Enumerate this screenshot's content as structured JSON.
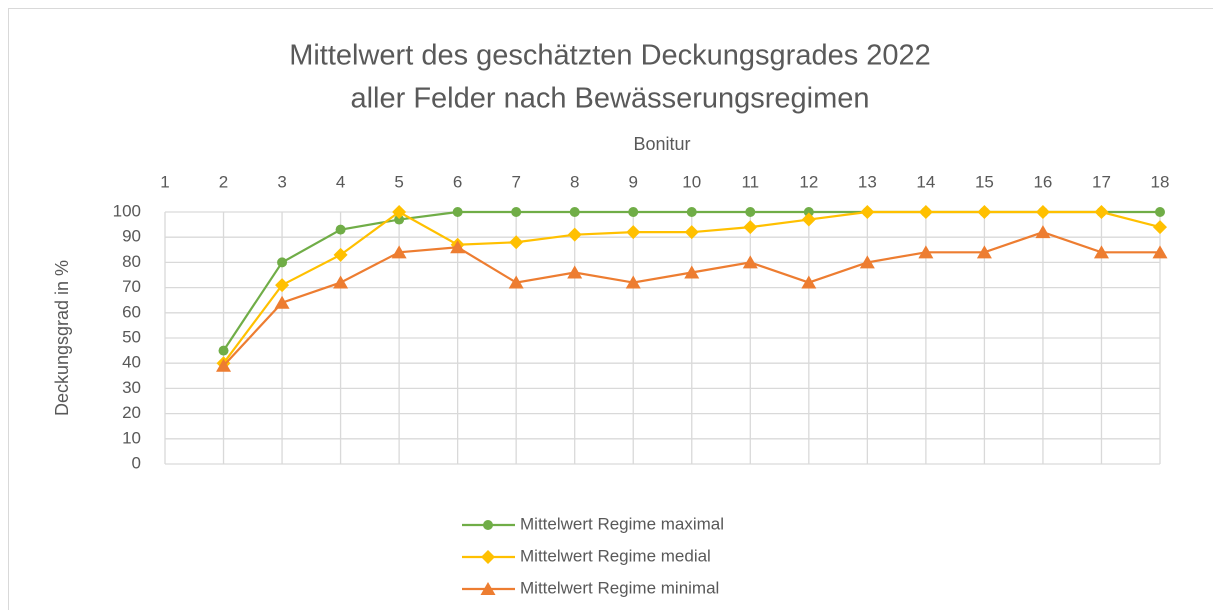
{
  "chart_data": {
    "type": "line",
    "title": [
      "Mittelwert des geschätzten Deckungsgrades 2022",
      "aller Felder nach Bewässerungsregimen"
    ],
    "x_label": "Bonitur",
    "y_label": "Deckungsgrad in %",
    "x": [
      2,
      3,
      4,
      5,
      6,
      7,
      8,
      9,
      10,
      11,
      12,
      13,
      14,
      15,
      16,
      17,
      18
    ],
    "xlim": [
      1,
      18
    ],
    "xticks": [
      1,
      2,
      3,
      4,
      5,
      6,
      7,
      8,
      9,
      10,
      11,
      12,
      13,
      14,
      15,
      16,
      17,
      18
    ],
    "ylim": [
      0,
      100
    ],
    "yticks": [
      0,
      10,
      20,
      30,
      40,
      50,
      60,
      70,
      80,
      90,
      100
    ],
    "grid": true,
    "legend": "bottom",
    "series": [
      {
        "name": "Mittelwert Regime maximal",
        "color": "#70ad47",
        "marker": "circle",
        "values": [
          45,
          80,
          93,
          97,
          100,
          100,
          100,
          100,
          100,
          100,
          100,
          100,
          100,
          100,
          100,
          100,
          100
        ]
      },
      {
        "name": "Mittelwert Regime medial",
        "color": "#ffc000",
        "marker": "diamond",
        "values": [
          40,
          71,
          83,
          100,
          87,
          88,
          91,
          92,
          92,
          94,
          97,
          100,
          100,
          100,
          100,
          100,
          94
        ]
      },
      {
        "name": "Mittelwert Regime minimal",
        "color": "#ed7d31",
        "marker": "triangle",
        "values": [
          39,
          64,
          72,
          84,
          86,
          72,
          76,
          72,
          76,
          80,
          72,
          80,
          84,
          84,
          92,
          84,
          84
        ]
      }
    ]
  }
}
